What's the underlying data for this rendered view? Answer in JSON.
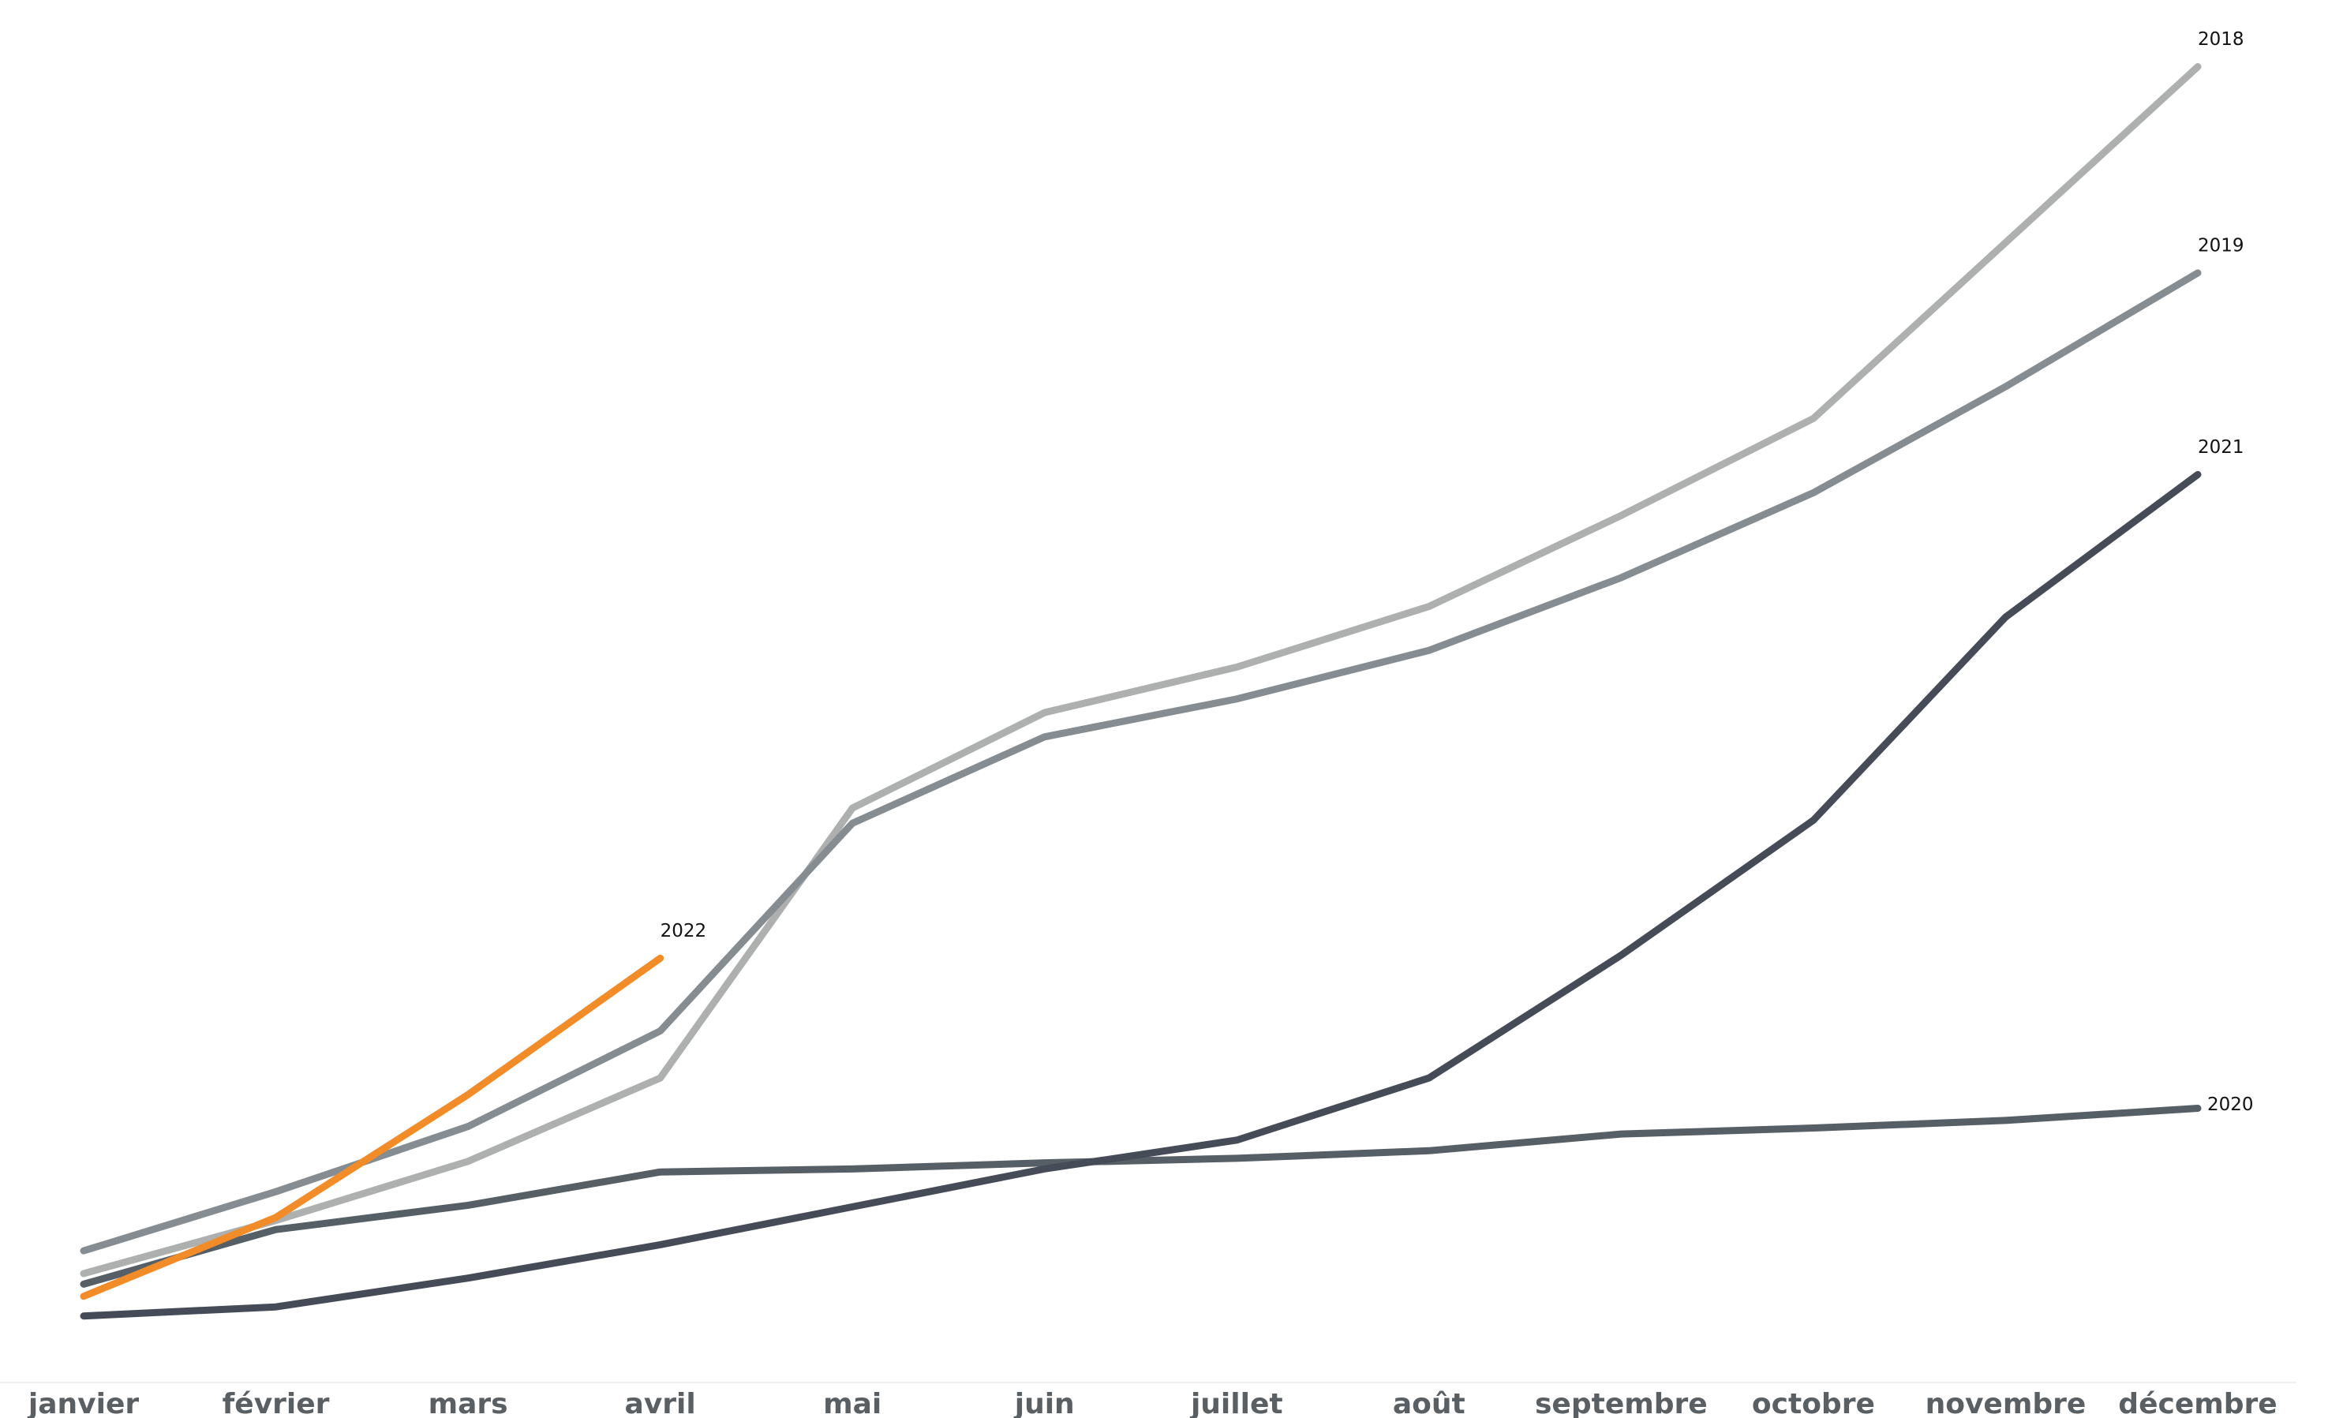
{
  "chart_data": {
    "type": "line",
    "categories": [
      "janvier",
      "février",
      "mars",
      "avril",
      "mai",
      "juin",
      "juillet",
      "août",
      "septembre",
      "octobre",
      "novembre",
      "décembre"
    ],
    "ylim": [
      0,
      890
    ],
    "series": [
      {
        "name": "2018",
        "color": "#adb0af",
        "values": [
          50,
          85,
          124,
          179,
          357,
          420,
          450,
          490,
          550,
          614,
          730,
          846
        ]
      },
      {
        "name": "2019",
        "color": "#858d92",
        "values": [
          65,
          104,
          147,
          210,
          347,
          404,
          429,
          461,
          509,
          565,
          635,
          710
        ]
      },
      {
        "name": "2020",
        "color": "#565e66",
        "values": [
          43,
          79,
          95,
          117,
          119,
          123,
          126,
          131,
          142,
          146,
          151,
          159
        ]
      },
      {
        "name": "2021",
        "color": "#454c58",
        "values": [
          22,
          28,
          47,
          69,
          94,
          119,
          138,
          179,
          260,
          349,
          483,
          577
        ]
      },
      {
        "name": "2022",
        "color": "#f28c28",
        "values": [
          35,
          87,
          168,
          258,
          null,
          null,
          null,
          null,
          null,
          null,
          null,
          null
        ]
      }
    ]
  }
}
